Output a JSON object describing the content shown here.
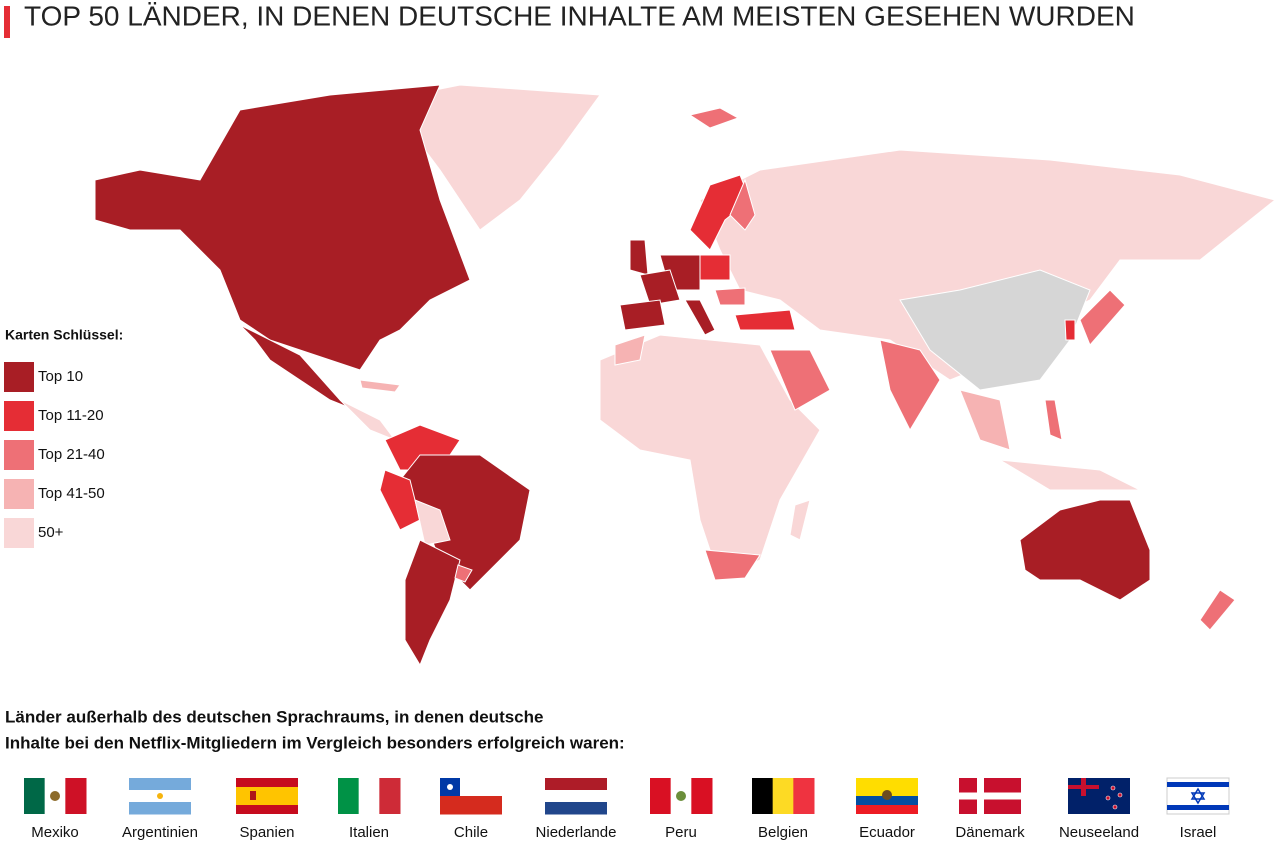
{
  "title": "TOP 50 LÄNDER, IN DENEN DEUTSCHE INHALTE AM MEISTEN GESEHEN WURDEN",
  "legend": {
    "title": "Karten Schlüssel:",
    "items": [
      {
        "label": "Top 10",
        "color": "#a81e25"
      },
      {
        "label": "Top 11-20",
        "color": "#e52d35"
      },
      {
        "label": "Top 21-40",
        "color": "#ee7076"
      },
      {
        "label": "Top 41-50",
        "color": "#f6b3b3"
      },
      {
        "label": "50+",
        "color": "#f9d7d7"
      }
    ]
  },
  "caption": {
    "lines": [
      "Länder außerhalb des deutschen Sprachraums, in denen deutsche",
      "Inhalte bei den Netflix-Mitgliedern im Vergleich besonders erfolgreich waren:"
    ]
  },
  "flags": [
    {
      "name": "Mexiko"
    },
    {
      "name": "Argentinien"
    },
    {
      "name": "Spanien"
    },
    {
      "name": "Italien"
    },
    {
      "name": "Chile"
    },
    {
      "name": "Niederlande"
    },
    {
      "name": "Peru"
    },
    {
      "name": "Belgien"
    },
    {
      "name": "Ecuador"
    },
    {
      "name": "Dänemark"
    },
    {
      "name": "Neuseeland"
    },
    {
      "name": "Israel"
    }
  ]
}
